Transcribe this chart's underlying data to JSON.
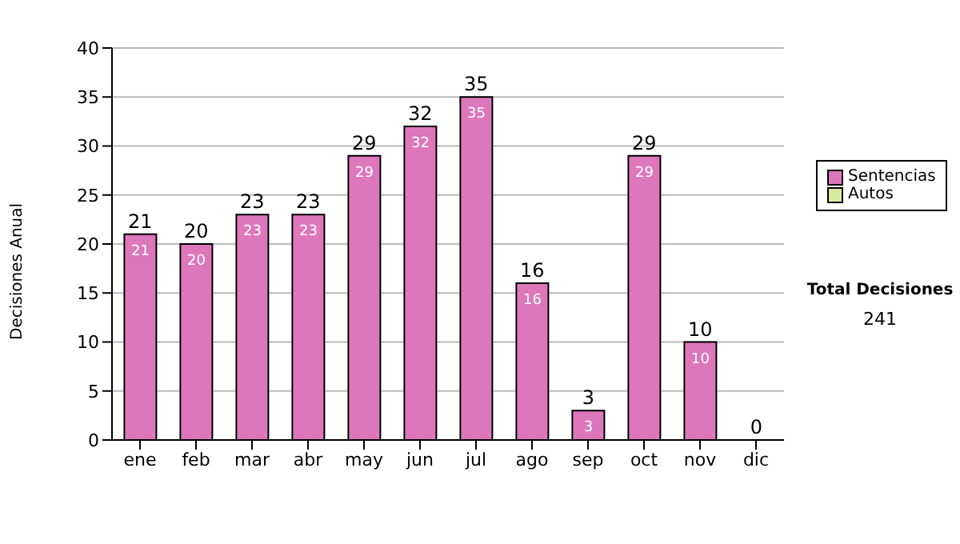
{
  "chart_data": {
    "type": "bar",
    "stacked": true,
    "ylabel": "Decisiones Anual",
    "categories": [
      "ene",
      "feb",
      "mar",
      "abr",
      "may",
      "jun",
      "jul",
      "ago",
      "sep",
      "oct",
      "nov",
      "dic"
    ],
    "series": [
      {
        "name": "Sentencias",
        "color": "#dd77bb",
        "values": [
          21,
          20,
          23,
          23,
          29,
          32,
          35,
          16,
          3,
          29,
          10,
          0
        ],
        "value_labels": [
          "21",
          "20",
          "23",
          "23",
          "29",
          "32",
          "35",
          "16",
          "3",
          "29",
          "10",
          null
        ]
      },
      {
        "name": "Autos",
        "color": "#d8eaa0",
        "values": [
          0,
          0,
          0,
          0,
          0,
          0,
          0,
          0,
          0,
          0,
          0,
          0
        ]
      }
    ],
    "ylim": [
      0,
      40
    ],
    "yticks": [
      0,
      5,
      10,
      15,
      20,
      25,
      30,
      35,
      40
    ],
    "grid": "y",
    "legend": "right",
    "totals": [
      "21",
      "20",
      "23",
      "23",
      "29",
      "32",
      "35",
      "16",
      "3",
      "29",
      "10",
      "0"
    ],
    "annotations": [
      "Total Decisiones",
      "241"
    ]
  }
}
